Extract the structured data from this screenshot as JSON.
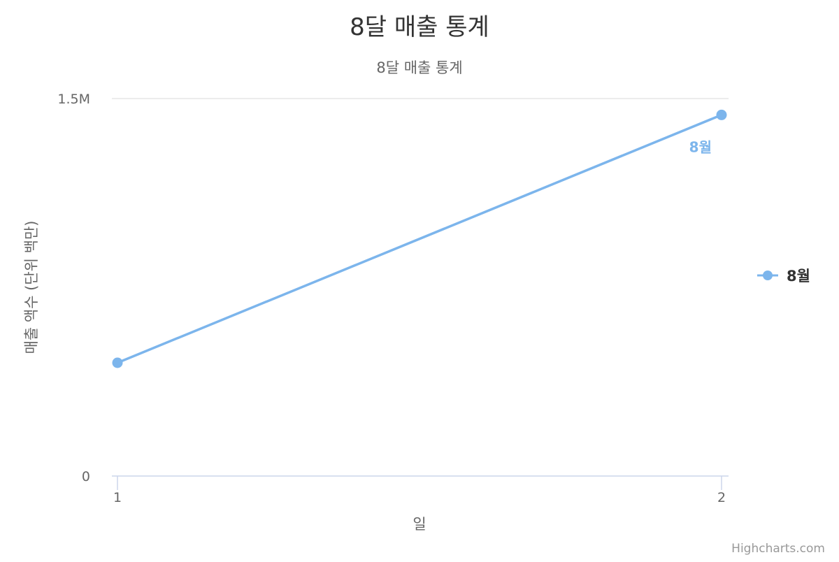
{
  "chart_data": {
    "type": "line",
    "title": "8달 매출 통계",
    "subtitle": "8달 매출 통계",
    "xlabel": "일",
    "ylabel": "매출 액수 (단위 백만)",
    "x": [
      1,
      2
    ],
    "xticks": [
      "1",
      "2"
    ],
    "yticks": [
      {
        "value": 0,
        "label": "0"
      },
      {
        "value": 1500000,
        "label": "1.5M"
      }
    ],
    "ylim": [
      0,
      1500000
    ],
    "grid": true,
    "legend": "right",
    "series": [
      {
        "name": "8월",
        "color": "#7cb5ec",
        "values": [
          450000,
          1435000
        ],
        "data_label": "8월"
      }
    ],
    "credits": "Highcharts.com"
  }
}
